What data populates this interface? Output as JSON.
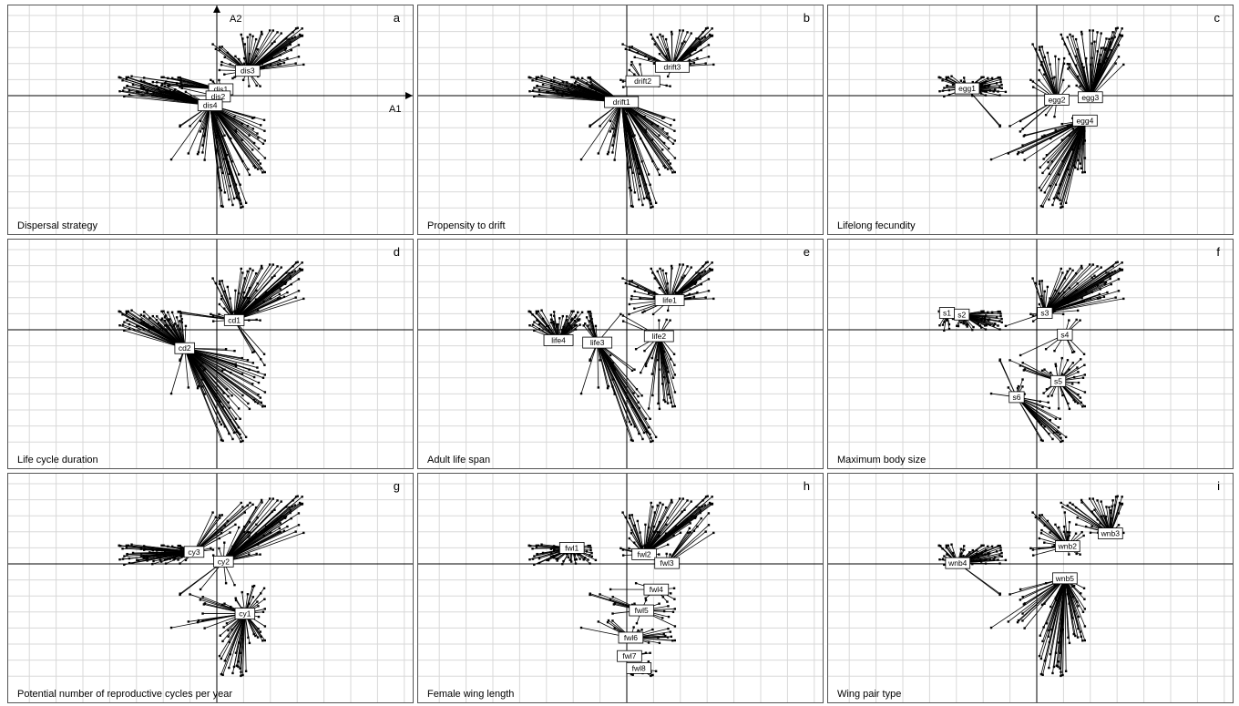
{
  "axes": {
    "x_name": "A1",
    "y_name": "A2"
  },
  "chart_data": [
    {
      "type": "scatter",
      "letter": "a",
      "title": "Dispersal strategy",
      "categories": [
        {
          "label": "dis1",
          "x": 0.3,
          "y": 0.8
        },
        {
          "label": "dis2",
          "x": 0.1,
          "y": -0.1
        },
        {
          "label": "dis3",
          "x": 2.3,
          "y": 3.1
        },
        {
          "label": "dis4",
          "x": -0.5,
          "y": -1.2
        }
      ]
    },
    {
      "type": "scatter",
      "letter": "b",
      "title": "Propensity to drift",
      "categories": [
        {
          "label": "drift1",
          "x": -0.4,
          "y": -0.8
        },
        {
          "label": "drift2",
          "x": 1.2,
          "y": 1.8
        },
        {
          "label": "drift3",
          "x": 3.4,
          "y": 3.6
        }
      ]
    },
    {
      "type": "scatter",
      "letter": "c",
      "title": "Lifelong fecundity",
      "categories": [
        {
          "label": "egg1",
          "x": -5.2,
          "y": 0.9
        },
        {
          "label": "egg2",
          "x": 1.5,
          "y": -0.5
        },
        {
          "label": "egg3",
          "x": 4.0,
          "y": -0.2
        },
        {
          "label": "egg4",
          "x": 3.6,
          "y": -3.1
        }
      ]
    },
    {
      "type": "scatter",
      "letter": "d",
      "title": "Life cycle duration",
      "categories": [
        {
          "label": "cd1",
          "x": 1.3,
          "y": 1.2
        },
        {
          "label": "cd2",
          "x": -2.4,
          "y": -2.3
        }
      ]
    },
    {
      "type": "scatter",
      "letter": "e",
      "title": "Adult life span",
      "categories": [
        {
          "label": "life1",
          "x": 3.2,
          "y": 3.7
        },
        {
          "label": "life2",
          "x": 2.4,
          "y": -0.8
        },
        {
          "label": "life3",
          "x": -2.2,
          "y": -1.6
        },
        {
          "label": "life4",
          "x": -5.1,
          "y": -1.3
        }
      ]
    },
    {
      "type": "scatter",
      "letter": "f",
      "title": "Maximum body size",
      "categories": [
        {
          "label": "s1",
          "x": -6.7,
          "y": 2.1
        },
        {
          "label": "s2",
          "x": -5.6,
          "y": 1.9
        },
        {
          "label": "s3",
          "x": 0.6,
          "y": 2.1
        },
        {
          "label": "s4",
          "x": 2.1,
          "y": -0.6
        },
        {
          "label": "s5",
          "x": 1.6,
          "y": -6.4
        },
        {
          "label": "s6",
          "x": -1.5,
          "y": -8.4
        }
      ]
    },
    {
      "type": "scatter",
      "letter": "g",
      "title": "Potential number of reproductive cycles per year",
      "categories": [
        {
          "label": "cy1",
          "x": 2.1,
          "y": -6.2
        },
        {
          "label": "cy2",
          "x": 0.5,
          "y": 0.3
        },
        {
          "label": "cy3",
          "x": -1.7,
          "y": 1.5
        }
      ]
    },
    {
      "type": "scatter",
      "letter": "h",
      "title": "Female wing length",
      "categories": [
        {
          "label": "fwl1",
          "x": -4.1,
          "y": 2.0
        },
        {
          "label": "fwl2",
          "x": 1.3,
          "y": 1.2
        },
        {
          "label": "fwl3",
          "x": 3.0,
          "y": 0.1
        },
        {
          "label": "fwl4",
          "x": 2.2,
          "y": -3.2
        },
        {
          "label": "fwl5",
          "x": 1.1,
          "y": -5.8
        },
        {
          "label": "fwl6",
          "x": 0.3,
          "y": -9.2
        },
        {
          "label": "fwl7",
          "x": 0.2,
          "y": -11.5
        },
        {
          "label": "fwl8",
          "x": 0.9,
          "y": -13.0
        }
      ]
    },
    {
      "type": "scatter",
      "letter": "i",
      "title": "Wing pair type",
      "categories": [
        {
          "label": "wnb2",
          "x": 2.3,
          "y": 2.2
        },
        {
          "label": "wnb3",
          "x": 5.5,
          "y": 3.8
        },
        {
          "label": "wnb4",
          "x": -5.9,
          "y": 0.1
        },
        {
          "label": "wnb5",
          "x": 2.1,
          "y": -1.8
        }
      ]
    }
  ]
}
